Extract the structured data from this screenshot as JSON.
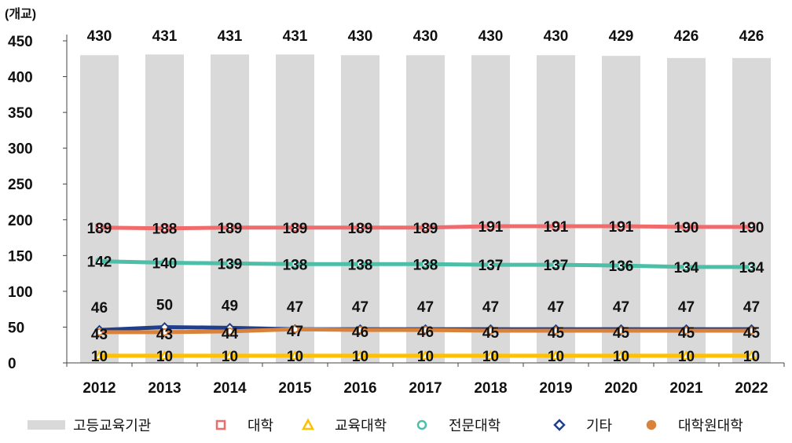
{
  "chart_data": {
    "type": "bar",
    "unit_label": "(개교)",
    "categories": [
      "2012",
      "2013",
      "2014",
      "2015",
      "2016",
      "2017",
      "2018",
      "2019",
      "2020",
      "2021",
      "2022"
    ],
    "ylim": [
      0,
      450
    ],
    "yticks": [
      0,
      50,
      100,
      150,
      200,
      250,
      300,
      350,
      400,
      450
    ],
    "legend_position": "bottom",
    "bar_series": {
      "name": "고등교육기관",
      "color": "#d9d9d9",
      "values": [
        430,
        431,
        431,
        431,
        430,
        430,
        430,
        430,
        429,
        426,
        426
      ]
    },
    "line_series": [
      {
        "name": "대학",
        "color": "#f06b6b",
        "marker": "square",
        "values": [
          189,
          188,
          189,
          189,
          189,
          189,
          191,
          191,
          191,
          190,
          190
        ]
      },
      {
        "name": "교육대학",
        "color": "#ffc000",
        "marker": "triangle",
        "values": [
          10,
          10,
          10,
          10,
          10,
          10,
          10,
          10,
          10,
          10,
          10
        ]
      },
      {
        "name": "전문대학",
        "color": "#4dbfa8",
        "marker": "circle",
        "values": [
          142,
          140,
          139,
          138,
          138,
          138,
          137,
          137,
          136,
          134,
          134
        ]
      },
      {
        "name": "기타",
        "color": "#1f3f8c",
        "marker": "diamond",
        "values": [
          46,
          50,
          49,
          47,
          47,
          47,
          47,
          47,
          47,
          47,
          47
        ]
      },
      {
        "name": "대학원대학",
        "color": "#d9823b",
        "marker": "circle",
        "values": [
          43,
          43,
          44,
          47,
          46,
          46,
          45,
          45,
          45,
          45,
          45
        ]
      }
    ]
  }
}
